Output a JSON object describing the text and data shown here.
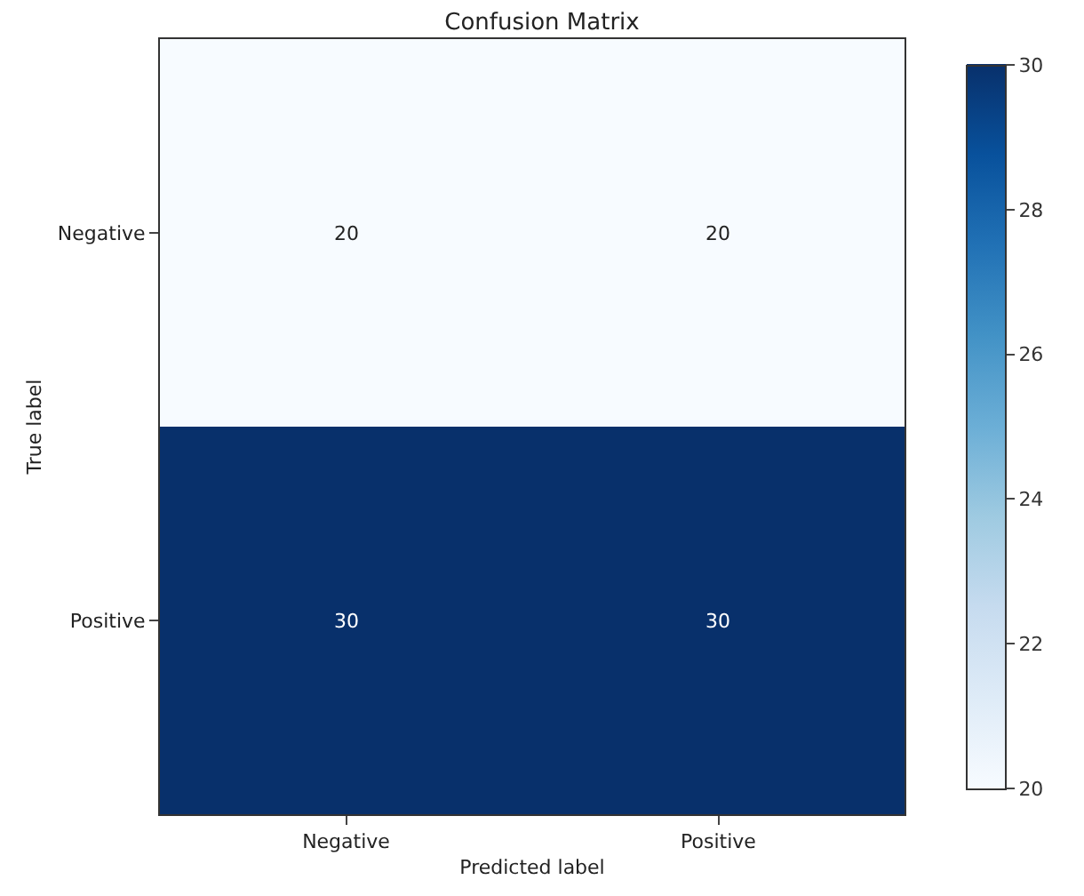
{
  "chart_data": {
    "type": "heatmap",
    "title": "Confusion Matrix",
    "xlabel": "Predicted label",
    "ylabel": "True label",
    "categories": [
      "Negative",
      "Positive"
    ],
    "y_categories": [
      "Negative",
      "Positive"
    ],
    "cells": [
      [
        20,
        20
      ],
      [
        30,
        30
      ]
    ],
    "data_labels": true,
    "clim": [
      20,
      30
    ],
    "cticks": [
      20,
      22,
      24,
      26,
      28,
      30
    ]
  }
}
